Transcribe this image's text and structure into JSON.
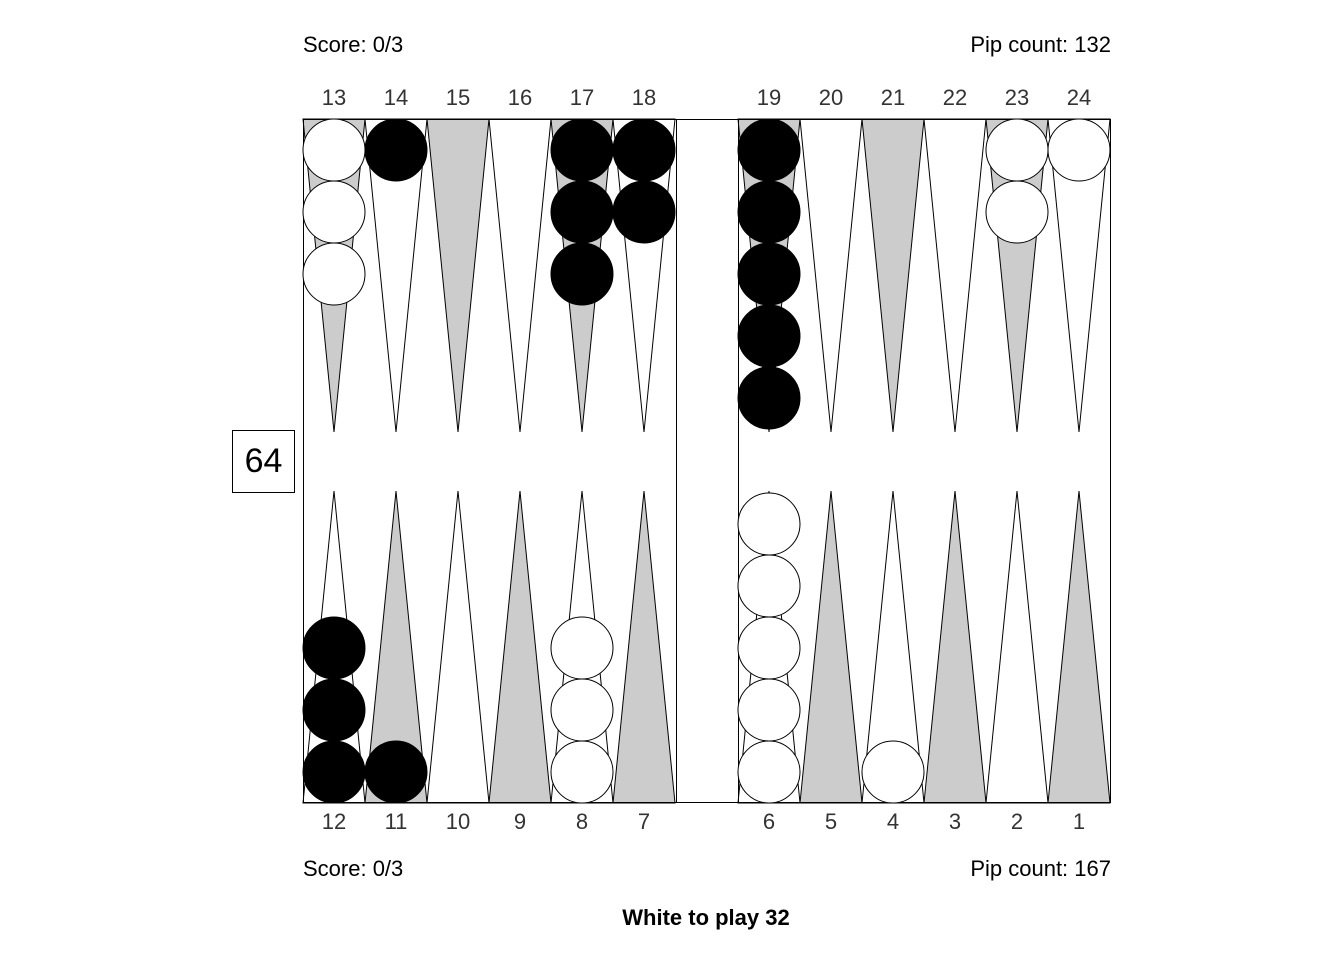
{
  "top": {
    "score": "Score: 0/3",
    "pip_count": "Pip count: 132"
  },
  "bottom": {
    "score": "Score: 0/3",
    "pip_count": "Pip count: 167"
  },
  "cube_value": "64",
  "status": "White to play 32",
  "colors": {
    "triangle_shaded": "#cccccc",
    "triangle_plain": "#ffffff",
    "black_checker": "#000000",
    "white_checker": "#ffffff"
  },
  "top_points": [
    "13",
    "14",
    "15",
    "16",
    "17",
    "18",
    "19",
    "20",
    "21",
    "22",
    "23",
    "24"
  ],
  "bottom_points": [
    "12",
    "11",
    "10",
    "9",
    "8",
    "7",
    "6",
    "5",
    "4",
    "3",
    "2",
    "1"
  ],
  "position": {
    "1": {
      "color": null,
      "count": 0
    },
    "2": {
      "color": null,
      "count": 0
    },
    "3": {
      "color": null,
      "count": 0
    },
    "4": {
      "color": "white",
      "count": 1
    },
    "5": {
      "color": null,
      "count": 0
    },
    "6": {
      "color": "white",
      "count": 5
    },
    "7": {
      "color": null,
      "count": 0
    },
    "8": {
      "color": "white",
      "count": 3
    },
    "9": {
      "color": null,
      "count": 0
    },
    "10": {
      "color": null,
      "count": 0
    },
    "11": {
      "color": "black",
      "count": 1
    },
    "12": {
      "color": "black",
      "count": 3
    },
    "13": {
      "color": "white",
      "count": 3
    },
    "14": {
      "color": "black",
      "count": 1
    },
    "15": {
      "color": null,
      "count": 0
    },
    "16": {
      "color": null,
      "count": 0
    },
    "17": {
      "color": "black",
      "count": 3
    },
    "18": {
      "color": "black",
      "count": 2
    },
    "19": {
      "color": "black",
      "count": 5
    },
    "20": {
      "color": null,
      "count": 0
    },
    "21": {
      "color": null,
      "count": 0
    },
    "22": {
      "color": null,
      "count": 0
    },
    "23": {
      "color": "white",
      "count": 2
    },
    "24": {
      "color": "white",
      "count": 1
    }
  }
}
